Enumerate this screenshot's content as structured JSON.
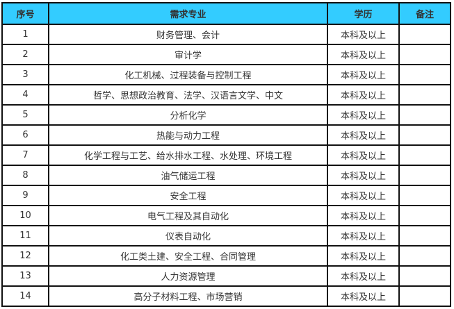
{
  "header": {
    "no": "序号",
    "major": "需求专业",
    "education": "学历",
    "remarks": "备注"
  },
  "colors": {
    "header_bg": "#33ccff"
  },
  "rows": [
    {
      "no": "1",
      "major": "财务管理、会计",
      "education": "本科及以上",
      "remarks": ""
    },
    {
      "no": "2",
      "major": "审计学",
      "education": "本科及以上",
      "remarks": ""
    },
    {
      "no": "3",
      "major": "化工机械、过程装备与控制工程",
      "education": "本科及以上",
      "remarks": ""
    },
    {
      "no": "4",
      "major": "哲学、思想政治教育、法学、汉语言文学、中文",
      "education": "本科及以上",
      "remarks": ""
    },
    {
      "no": "5",
      "major": "分析化学",
      "education": "本科及以上",
      "remarks": ""
    },
    {
      "no": "6",
      "major": "热能与动力工程",
      "education": "本科及以上",
      "remarks": ""
    },
    {
      "no": "7",
      "major": "化学工程与工艺、给水排水工程、水处理、环境工程",
      "education": "本科及以上",
      "remarks": ""
    },
    {
      "no": "8",
      "major": "油气储运工程",
      "education": "本科及以上",
      "remarks": ""
    },
    {
      "no": "9",
      "major": "安全工程",
      "education": "本科及以上",
      "remarks": ""
    },
    {
      "no": "10",
      "major": "电气工程及其自动化",
      "education": "本科及以上",
      "remarks": ""
    },
    {
      "no": "11",
      "major": "仪表自动化",
      "education": "本科及以上",
      "remarks": ""
    },
    {
      "no": "12",
      "major": "化工类土建、安全工程、合同管理",
      "education": "本科及以上",
      "remarks": ""
    },
    {
      "no": "13",
      "major": "人力资源管理",
      "education": "本科及以上",
      "remarks": ""
    },
    {
      "no": "14",
      "major": "高分子材料工程、市场营销",
      "education": "本科及以上",
      "remarks": ""
    }
  ]
}
